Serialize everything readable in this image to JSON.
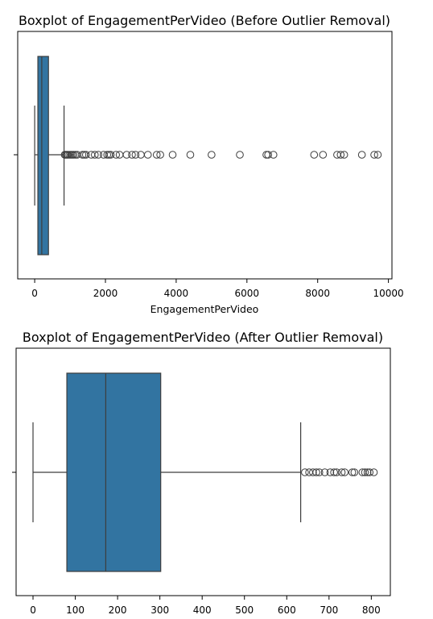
{
  "chart_data": [
    {
      "type": "boxplot",
      "title": "Boxplot of EngagementPerVideo (Before Outlier Removal)",
      "xlabel": "EngagementPerVideo",
      "ylabel": "",
      "xlim": [
        -480,
        10100
      ],
      "xticks": [
        0,
        2000,
        4000,
        6000,
        8000,
        10000
      ],
      "xtick_labels": [
        "0",
        "2000",
        "4000",
        "6000",
        "8000",
        "10000"
      ],
      "grid": false,
      "stats": {
        "whislo": 0,
        "q1": 90,
        "median": 200,
        "q3": 390,
        "whishi": 830
      },
      "fliers": [
        850,
        880,
        910,
        940,
        980,
        1020,
        1060,
        1100,
        1150,
        1200,
        1350,
        1400,
        1450,
        1600,
        1700,
        1800,
        1950,
        2050,
        2100,
        2150,
        2300,
        2400,
        2600,
        2750,
        2850,
        3000,
        3200,
        3450,
        3550,
        3900,
        4400,
        5000,
        5800,
        6550,
        6600,
        6750,
        7900,
        8150,
        8550,
        8650,
        8750,
        9250,
        9600,
        9700
      ]
    },
    {
      "type": "boxplot",
      "title": "Boxplot of EngagementPerVideo (After Outlier Removal)",
      "xlabel": "",
      "ylabel": "",
      "xlim": [
        -40,
        845
      ],
      "xticks": [
        0,
        100,
        200,
        300,
        400,
        500,
        600,
        700,
        800
      ],
      "xtick_labels": [
        "0",
        "100",
        "200",
        "300",
        "400",
        "500",
        "600",
        "700",
        "800"
      ],
      "grid": false,
      "stats": {
        "whislo": 0,
        "q1": 80,
        "median": 172,
        "q3": 302,
        "whishi": 633
      },
      "fliers": [
        643,
        653,
        662,
        670,
        677,
        690,
        703,
        712,
        718,
        730,
        737,
        755,
        760,
        779,
        785,
        791,
        796,
        806
      ]
    }
  ]
}
